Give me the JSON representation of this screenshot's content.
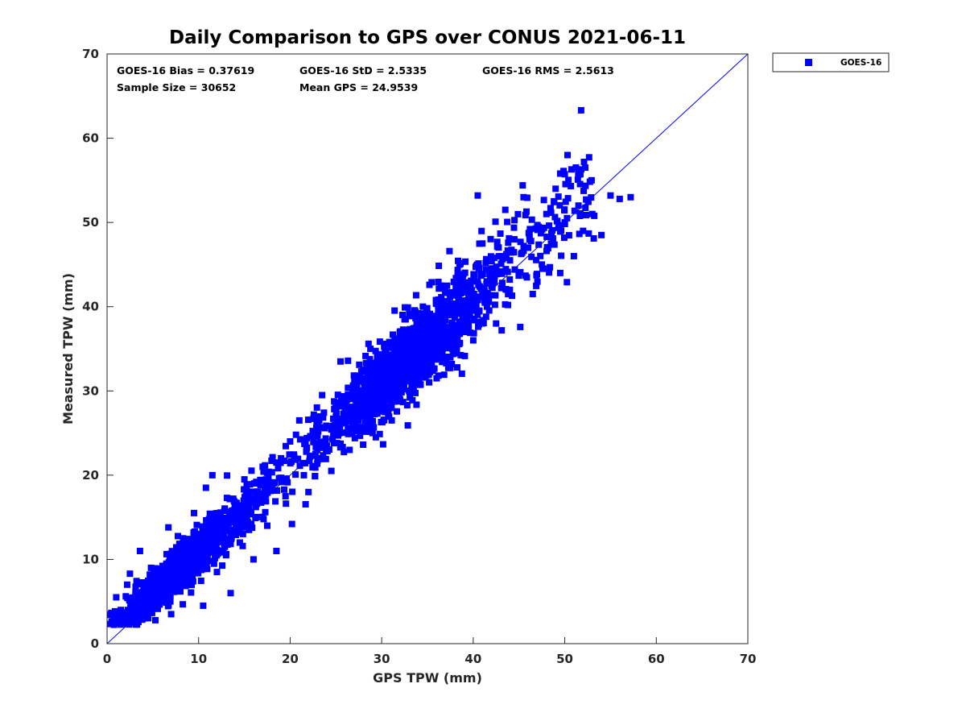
{
  "chart_data": {
    "type": "scatter",
    "title": "Daily Comparison to GPS over CONUS 2021-06-11",
    "xlabel": "GPS TPW (mm)",
    "ylabel": "Measured TPW (mm)",
    "xlim": [
      0,
      70
    ],
    "ylim": [
      0,
      70
    ],
    "xticks": [
      "0",
      "10",
      "20",
      "30",
      "40",
      "50",
      "60",
      "70"
    ],
    "yticks": [
      "0",
      "10",
      "20",
      "30",
      "40",
      "50",
      "60",
      "70"
    ],
    "grid": false,
    "legend_position": "outside-top-right",
    "stats": {
      "bias": "GOES-16 Bias = 0.37619",
      "std": "GOES-16 StD = 2.5335",
      "rms": "GOES-16 RMS = 2.5613",
      "sample_size": "Sample Size = 30652",
      "mean_gps": "Mean GPS = 24.9539"
    },
    "reference_line": {
      "type": "1:1",
      "from": [
        0,
        0
      ],
      "to": [
        70,
        70
      ]
    },
    "series": [
      {
        "name": "GOES-16",
        "color": "#0000FF",
        "marker": "square",
        "n_points": 30652,
        "bias": 0.37619,
        "std": 2.5335,
        "rms": 2.5613,
        "mean_x": 24.9539,
        "points": [
          [
            0.5,
            2.6
          ],
          [
            0.8,
            3.1
          ],
          [
            1.2,
            2.4
          ],
          [
            1.5,
            4.0
          ],
          [
            2.0,
            3.2
          ],
          [
            2.2,
            7.0
          ],
          [
            1.0,
            5.5
          ],
          [
            2.5,
            8.3
          ],
          [
            3.0,
            2.5
          ],
          [
            3.5,
            4.5
          ],
          [
            4.0,
            3.0
          ],
          [
            4.2,
            6.5
          ],
          [
            3.6,
            11.0
          ],
          [
            4.8,
            9.0
          ],
          [
            5.0,
            4.2
          ],
          [
            5.5,
            7.6
          ],
          [
            6.0,
            5.0
          ],
          [
            6.5,
            9.5
          ],
          [
            6.7,
            13.8
          ],
          [
            7.0,
            3.5
          ],
          [
            7.5,
            8.5
          ],
          [
            8.0,
            6.2
          ],
          [
            8.3,
            12.5
          ],
          [
            9.0,
            7.5
          ],
          [
            9.5,
            15.5
          ],
          [
            10.0,
            9.0
          ],
          [
            10.5,
            4.5
          ],
          [
            11.0,
            12.0
          ],
          [
            10.8,
            18.5
          ],
          [
            11.5,
            20.0
          ],
          [
            12.0,
            8.5
          ],
          [
            12.5,
            14.5
          ],
          [
            13.0,
            10.5
          ],
          [
            13.5,
            6.0
          ],
          [
            14.0,
            16.0
          ],
          [
            14.5,
            12.0
          ],
          [
            15.0,
            19.5
          ],
          [
            15.5,
            13.5
          ],
          [
            16.0,
            10.0
          ],
          [
            16.5,
            17.5
          ],
          [
            17.0,
            21.0
          ],
          [
            17.5,
            14.0
          ],
          [
            18.0,
            19.0
          ],
          [
            18.5,
            11.0
          ],
          [
            19.0,
            22.0
          ],
          [
            19.5,
            17.5
          ],
          [
            20.0,
            24.0
          ],
          [
            20.2,
            14.2
          ],
          [
            21.0,
            26.5
          ],
          [
            21.5,
            20.0
          ],
          [
            22.0,
            18.0
          ],
          [
            22.5,
            25.0
          ],
          [
            23.0,
            22.0
          ],
          [
            23.5,
            29.5
          ],
          [
            24.0,
            23.5
          ],
          [
            24.5,
            20.5
          ],
          [
            25.0,
            27.0
          ],
          [
            25.5,
            33.5
          ],
          [
            26.0,
            28.0
          ],
          [
            26.5,
            23.0
          ],
          [
            27.0,
            30.0
          ],
          [
            27.5,
            26.5
          ],
          [
            28.0,
            32.5
          ],
          [
            28.5,
            29.0
          ],
          [
            29.0,
            25.0
          ],
          [
            29.5,
            34.0
          ],
          [
            30.0,
            31.0
          ],
          [
            30.5,
            28.0
          ],
          [
            31.0,
            35.5
          ],
          [
            31.5,
            32.0
          ],
          [
            32.0,
            29.0
          ],
          [
            32.5,
            38.5
          ],
          [
            33.0,
            34.0
          ],
          [
            33.5,
            30.5
          ],
          [
            34.0,
            36.0
          ],
          [
            34.5,
            40.0
          ],
          [
            35.0,
            33.0
          ],
          [
            35.5,
            37.5
          ],
          [
            36.0,
            31.5
          ],
          [
            36.5,
            42.5
          ],
          [
            37.0,
            36.5
          ],
          [
            37.5,
            34.0
          ],
          [
            38.0,
            39.5
          ],
          [
            38.5,
            45.0
          ],
          [
            39.0,
            37.0
          ],
          [
            39.5,
            41.5
          ],
          [
            40.0,
            36.0
          ],
          [
            40.5,
            43.0
          ],
          [
            41.0,
            47.5
          ],
          [
            41.5,
            40.0
          ],
          [
            42.0,
            44.5
          ],
          [
            42.5,
            38.0
          ],
          [
            43.0,
            46.0
          ],
          [
            43.5,
            51.5
          ],
          [
            44.0,
            42.0
          ],
          [
            44.5,
            48.0
          ],
          [
            45.0,
            44.0
          ],
          [
            45.5,
            53.0
          ],
          [
            46.0,
            47.0
          ],
          [
            46.5,
            41.5
          ],
          [
            47.0,
            49.5
          ],
          [
            47.5,
            45.0
          ],
          [
            48.0,
            51.0
          ],
          [
            48.5,
            47.5
          ],
          [
            49.0,
            54.0
          ],
          [
            49.5,
            44.0
          ],
          [
            50.0,
            50.0
          ],
          [
            50.3,
            58.0
          ],
          [
            51.0,
            46.0
          ],
          [
            51.5,
            52.0
          ],
          [
            52.0,
            49.0
          ],
          [
            53.0,
            51.0
          ],
          [
            54.0,
            48.5
          ],
          [
            55.0,
            53.2
          ],
          [
            56.0,
            52.8
          ],
          [
            57.2,
            53.0
          ],
          [
            51.8,
            56.3
          ],
          [
            49.5,
            55.8
          ],
          [
            45.4,
            54.4
          ],
          [
            40.5,
            53.2
          ]
        ]
      }
    ]
  }
}
